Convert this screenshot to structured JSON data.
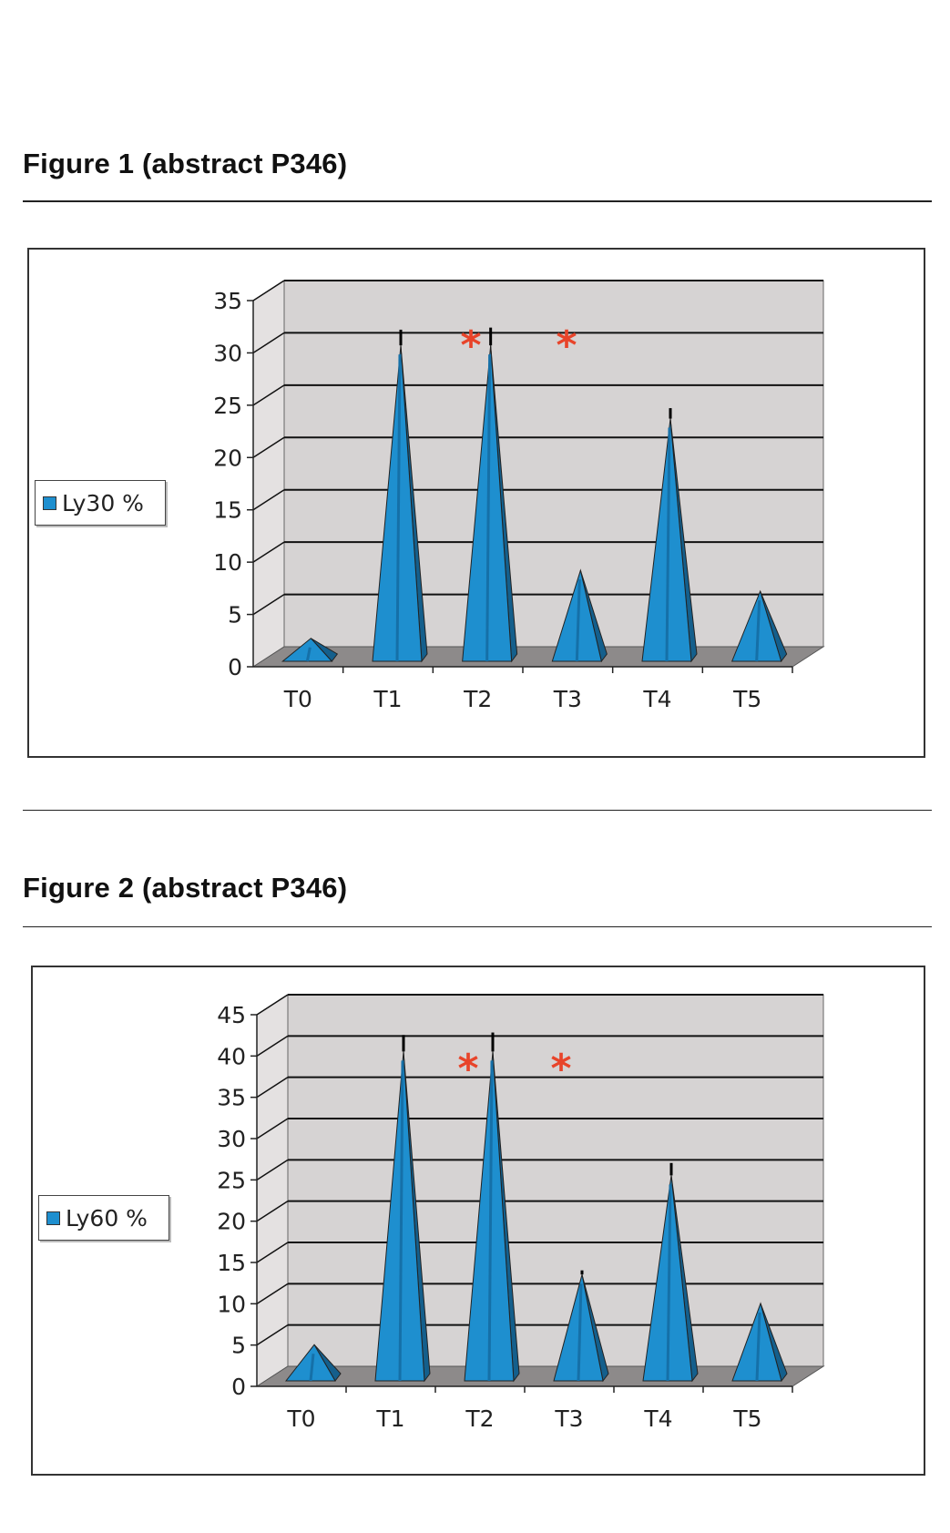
{
  "figures": [
    {
      "heading": "Figure 1 (abstract P346)",
      "legend_label": "Ly30 %",
      "chart_data": {
        "type": "bar",
        "style": "3d-cone",
        "categories": [
          "T0",
          "T1",
          "T2",
          "T3",
          "T4",
          "T5"
        ],
        "series": [
          {
            "name": "Ly30 %",
            "values": [
              1.5,
              29.5,
              29.5,
              8,
              22.5,
              6
            ]
          }
        ],
        "error_bar_tops": [
          null,
          31,
          31.2,
          null,
          23.5,
          null
        ],
        "annotations": [
          "*",
          "*"
        ],
        "ylim": [
          0,
          35
        ],
        "yticks": [
          0,
          5,
          10,
          15,
          20,
          25,
          30,
          35
        ],
        "grid": true,
        "legend_position": "left",
        "colors": {
          "bar": "#1e8fcf",
          "bar_dark": "#145f8c",
          "wall": "#d6d3d3",
          "floor": "#8d8a8a",
          "star": "#e8442a"
        }
      }
    },
    {
      "heading": "Figure 2 (abstract P346)",
      "legend_label": "Ly60 %",
      "chart_data": {
        "type": "bar",
        "style": "3d-cone",
        "categories": [
          "T0",
          "T1",
          "T2",
          "T3",
          "T4",
          "T5"
        ],
        "series": [
          {
            "name": "Ly60 %",
            "values": [
              3.5,
              39,
              39,
              12,
              24,
              8.5
            ]
          }
        ],
        "error_bar_tops": [
          null,
          41,
          41.3,
          12.5,
          25.5,
          null
        ],
        "annotations": [
          "*",
          "*"
        ],
        "ylim": [
          0,
          45
        ],
        "yticks": [
          0,
          5,
          10,
          15,
          20,
          25,
          30,
          35,
          40,
          45
        ],
        "grid": true,
        "legend_position": "left",
        "colors": {
          "bar": "#1e8fcf",
          "bar_dark": "#145f8c",
          "wall": "#d6d3d3",
          "floor": "#8d8a8a",
          "star": "#e8442a"
        }
      }
    }
  ]
}
